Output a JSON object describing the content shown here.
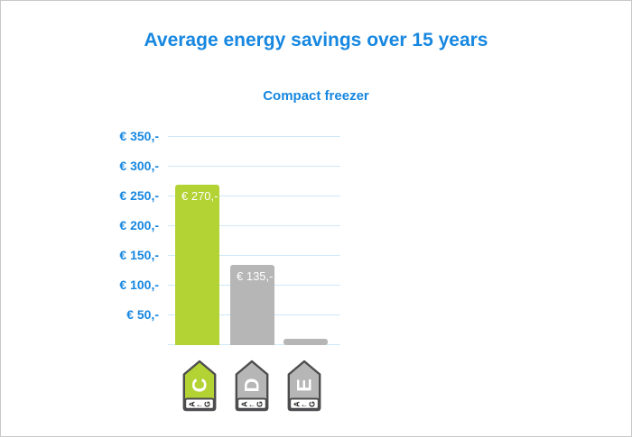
{
  "title": "Average energy savings over 15 years",
  "subtitle": "Compact freezer",
  "colors": {
    "accent_blue": "#1787e0",
    "gridline_blue": "#cfe8f7",
    "bar_green": "#b3d233",
    "bar_gray": "#b6b6b6",
    "bar_label_white": "#ffffff",
    "tag_border": "#4d4d4f",
    "tag_footer_text": "#1a1a1a",
    "page_border": "#c9c9c9"
  },
  "chart_data": {
    "type": "bar",
    "title": "Average energy savings over 15 years",
    "subtitle": "Compact freezer",
    "categories": [
      "C",
      "D",
      "E"
    ],
    "values": [
      270,
      135,
      10
    ],
    "bar_labels": [
      "€ 270,-",
      "€ 135,-",
      ""
    ],
    "bar_colors": [
      "#b3d233",
      "#b6b6b6",
      "#b6b6b6"
    ],
    "ylabel_ticks": [
      "€ 350,-",
      "€ 300,-",
      "€ 250,-",
      "€ 200,-",
      "€ 150,-",
      "€ 100,-",
      "€ 50,-"
    ],
    "ylim": [
      0,
      350
    ],
    "tick_step": 50,
    "grid": true,
    "currency": "EUR",
    "legend": "none",
    "energy_labels": [
      {
        "class": "C",
        "scale_from": "A",
        "scale_arrow": "←",
        "scale_to": "G",
        "color": "#b3d233"
      },
      {
        "class": "D",
        "scale_from": "A",
        "scale_arrow": "←",
        "scale_to": "G",
        "color": "#b6b6b6"
      },
      {
        "class": "E",
        "scale_from": "A",
        "scale_arrow": "←",
        "scale_to": "G",
        "color": "#b6b6b6"
      }
    ]
  }
}
